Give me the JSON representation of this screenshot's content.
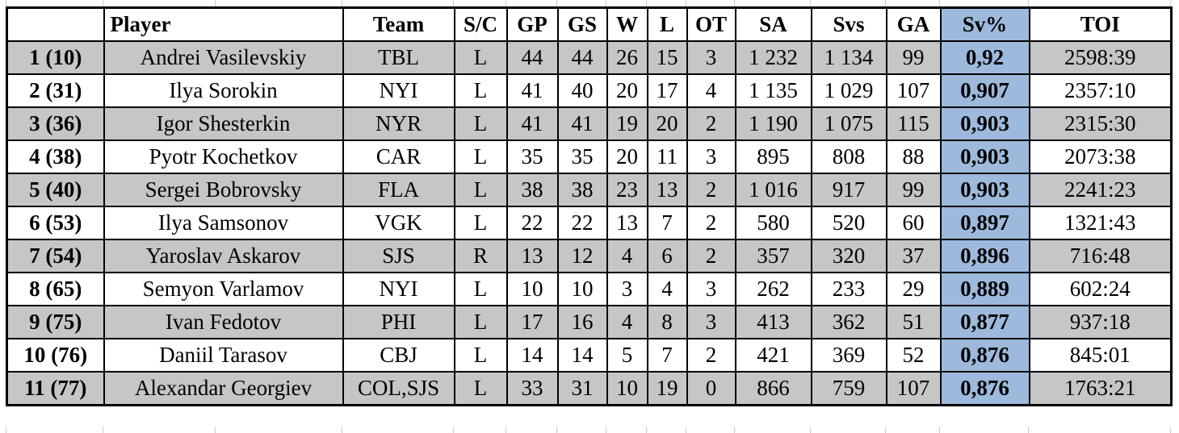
{
  "title": "Goaltender statistics table",
  "colors": {
    "alt_row_gray": "#c6c6c6",
    "highlight_blue": "#9db9dc",
    "border_black": "#000000",
    "background_white": "#ffffff"
  },
  "chart_data": {
    "type": "table",
    "title": "Goaltender statistics",
    "columns": [
      "",
      "Player",
      "Team",
      "S/C",
      "GP",
      "GS",
      "W",
      "L",
      "OT",
      "SA",
      "Svs",
      "GA",
      "Sv%",
      "TOI"
    ],
    "highlighted_column": "Sv%",
    "rows": [
      [
        "1 (10)",
        "Andrei Vasilevskiy",
        "TBL",
        "L",
        "44",
        "44",
        "26",
        "15",
        "3",
        "1 232",
        "1 134",
        "99",
        "0,92",
        "2598:39"
      ],
      [
        "2 (31)",
        "Ilya Sorokin",
        "NYI",
        "L",
        "41",
        "40",
        "20",
        "17",
        "4",
        "1 135",
        "1 029",
        "107",
        "0,907",
        "2357:10"
      ],
      [
        "3 (36)",
        "Igor Shesterkin",
        "NYR",
        "L",
        "41",
        "41",
        "19",
        "20",
        "2",
        "1 190",
        "1 075",
        "115",
        "0,903",
        "2315:30"
      ],
      [
        "4 (38)",
        "Pyotr Kochetkov",
        "CAR",
        "L",
        "35",
        "35",
        "20",
        "11",
        "3",
        "895",
        "808",
        "88",
        "0,903",
        "2073:38"
      ],
      [
        "5 (40)",
        "Sergei Bobrovsky",
        "FLA",
        "L",
        "38",
        "38",
        "23",
        "13",
        "2",
        "1 016",
        "917",
        "99",
        "0,903",
        "2241:23"
      ],
      [
        "6 (53)",
        "Ilya Samsonov",
        "VGK",
        "L",
        "22",
        "22",
        "13",
        "7",
        "2",
        "580",
        "520",
        "60",
        "0,897",
        "1321:43"
      ],
      [
        "7 (54)",
        "Yaroslav Askarov",
        "SJS",
        "R",
        "13",
        "12",
        "4",
        "6",
        "2",
        "357",
        "320",
        "37",
        "0,896",
        "716:48"
      ],
      [
        "8 (65)",
        "Semyon Varlamov",
        "NYI",
        "L",
        "10",
        "10",
        "3",
        "4",
        "3",
        "262",
        "233",
        "29",
        "0,889",
        "602:24"
      ],
      [
        "9 (75)",
        "Ivan Fedotov",
        "PHI",
        "L",
        "17",
        "16",
        "4",
        "8",
        "3",
        "413",
        "362",
        "51",
        "0,877",
        "937:18"
      ],
      [
        "10 (76)",
        "Daniil Tarasov",
        "CBJ",
        "L",
        "14",
        "14",
        "5",
        "7",
        "2",
        "421",
        "369",
        "52",
        "0,876",
        "845:01"
      ],
      [
        "11 (77)",
        "Alexandar Georgiev",
        "COL,SJS",
        "L",
        "33",
        "31",
        "10",
        "19",
        "0",
        "866",
        "759",
        "107",
        "0,876",
        "1763:21"
      ]
    ]
  }
}
